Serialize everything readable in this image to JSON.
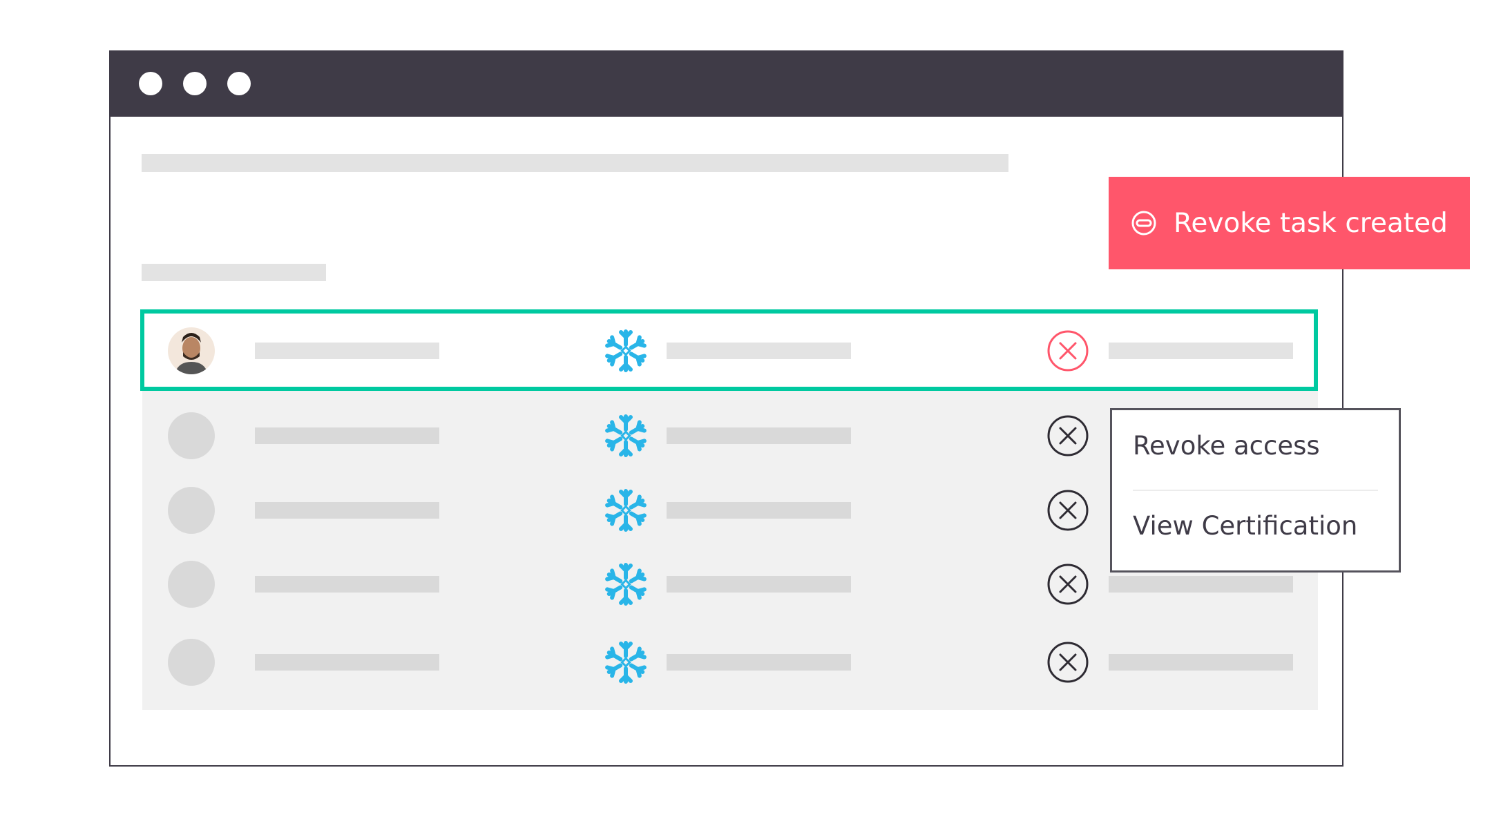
{
  "window": {
    "titlebar_color": "#3f3b47",
    "dots": [
      "dot",
      "dot",
      "dot"
    ]
  },
  "table": {
    "selected_row_border_color": "#00c9a0",
    "rows": [
      {
        "avatar": "user-photo",
        "app_icon": "snowflake-icon",
        "action_icon": "x-circle-icon",
        "action_color": "#ff566b",
        "selected": true
      },
      {
        "avatar": "placeholder",
        "app_icon": "snowflake-icon",
        "action_icon": "x-circle-icon",
        "action_color": "#2e2b33",
        "selected": false
      },
      {
        "avatar": "placeholder",
        "app_icon": "snowflake-icon",
        "action_icon": "x-circle-icon",
        "action_color": "#2e2b33",
        "selected": false
      },
      {
        "avatar": "placeholder",
        "app_icon": "snowflake-icon",
        "action_icon": "x-circle-icon",
        "action_color": "#2e2b33",
        "selected": false
      },
      {
        "avatar": "placeholder",
        "app_icon": "snowflake-icon",
        "action_icon": "x-circle-icon",
        "action_color": "#2e2b33",
        "selected": false
      }
    ]
  },
  "toast": {
    "icon": "minus-circle-icon",
    "text": "Revoke task created",
    "color": "#ff566b"
  },
  "context_menu": {
    "items": [
      {
        "label": "Revoke access"
      },
      {
        "label": "View Certification"
      }
    ]
  },
  "brand": {
    "snowflake_color": "#29b5e8"
  }
}
